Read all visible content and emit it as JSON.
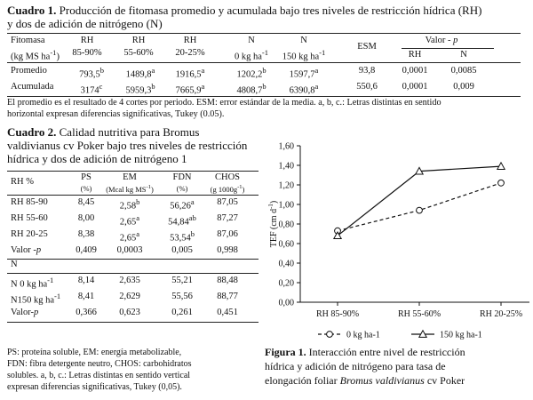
{
  "table1": {
    "caption_bold": "Cuadro 1.",
    "caption_line1": " Producción de fitomasa promedio y acumulada bajo tres niveles de restricción hídrica (RH)",
    "caption_line2": "y dos de adición de nitrógeno (N)",
    "head": {
      "fitomasa": "Fitomasa",
      "fitomasa_unit": "(kg MS ha-1)",
      "rh": "RH",
      "rh1": "85-90%",
      "rh2": "55-60%",
      "rh3": "20-25%",
      "n": "N",
      "n1": "0 kg ha-1",
      "n2": "150 kg ha-1",
      "esm": "ESM",
      "valor_p": "Valor - p",
      "p_rh": "RH",
      "p_n": "N"
    },
    "rows": [
      [
        "Promedio",
        "793,5b",
        "1489,8a",
        "1916,5a",
        "1202,2b",
        "1597,7a",
        "93,8",
        "0,0001",
        "0,0085"
      ],
      [
        "Acumulada",
        "3174c",
        "5959,3b",
        "7665,9a",
        "4808,7b",
        "6390,8a",
        "550,6",
        "0,0001",
        "0,009"
      ]
    ],
    "note_line1": "El promedio es el resultado de 4 cortes por periodo. ESM: error estándar de la media. a, b, c.: Letras distintas en sentido",
    "note_line2": "horizontal expresan diferencias significativas, Tukey (0.05)."
  },
  "table2": {
    "caption_bold": "Cuadro 2.",
    "caption_line1": " Calidad nutritiva para Bromus",
    "caption_line2": "valdivianus cv Poker bajo tres niveles de restricción",
    "caption_line3": "hídrica y dos de adición de nitrógeno 1",
    "head": {
      "rh": "RH %",
      "ps": "PS",
      "ps_unit": "(%)",
      "em": "EM",
      "em_unit": "(Mcal kg MS-1)",
      "fdn": "FDN",
      "fdn_unit": "(%)",
      "chos": "CHOS",
      "chos_unit": "(g 1000g-1)"
    },
    "rh_rows": [
      [
        "RH 85-90",
        "8,45",
        "2,58b",
        "56,26a",
        "87,05"
      ],
      [
        "RH 55-60",
        "8,00",
        "2,65a",
        "54,84ab",
        "87,27"
      ],
      [
        "RH 20-25",
        "8,38",
        "2,65a",
        "53,54b",
        "87,06"
      ],
      [
        "Valor -p",
        "0,409",
        "0,0003",
        "0,005",
        "0,998"
      ]
    ],
    "n_label": "N",
    "n_rows": [
      [
        "N 0 kg ha-1",
        "8,14",
        "2,635",
        "55,21",
        "88,48"
      ],
      [
        "N150 kg ha-1",
        "8,41",
        "2,629",
        "55,56",
        "88,77"
      ],
      [
        "Valor-p",
        "0,366",
        "0,623",
        "0,261",
        "0,451"
      ]
    ],
    "foot_line1": "PS: proteína soluble, EM: energía metabolizable,",
    "foot_line2": "FDN: fibra detergente neutro, CHOS: carbohidratos",
    "foot_line3": "solubles. a, b, c.: Letras distintas en sentido vertical",
    "foot_line4": "expresan diferencias significativas, Tukey (0,05)."
  },
  "chart_data": {
    "type": "line",
    "categories": [
      "RH 85-90%",
      "RH 55-60%",
      "RH 20-25%"
    ],
    "series": [
      {
        "name": "0 kg ha-1",
        "values": [
          0.73,
          0.94,
          1.22
        ],
        "style": "dashed",
        "marker": "circle"
      },
      {
        "name": "150 kg ha-1",
        "values": [
          0.68,
          1.34,
          1.39
        ],
        "style": "solid",
        "marker": "triangle"
      }
    ],
    "ylabel": "TEF (cm d-1)",
    "ylim": [
      0,
      1.6
    ],
    "yticks": [
      "0,00",
      "0,20",
      "0,40",
      "0,60",
      "0,80",
      "1,00",
      "1,20",
      "1,40",
      "1,60"
    ],
    "grid": false,
    "legend": "bottom"
  },
  "figure": {
    "label": "Figura 1.",
    "caption_line1": " Interacción entre nivel de restricción",
    "caption_line2": "hídrica y adición de nitrógeno para tasa de",
    "caption_line3_pre": "elongación foliar ",
    "caption_line3_italic": "Bromus valdivianus",
    "caption_line3_post": " cv Poker"
  }
}
